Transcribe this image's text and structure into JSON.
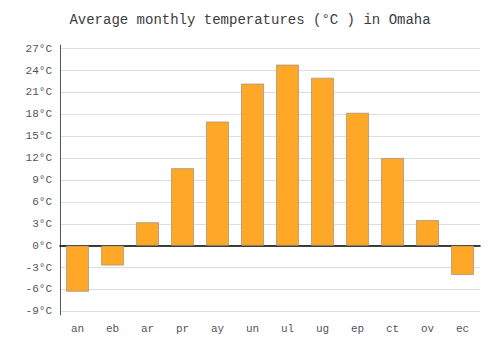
{
  "chart_data": {
    "type": "bar",
    "title": "Average monthly temperatures (°C ) in Omaha",
    "categories": [
      "an",
      "eb",
      "ar",
      "pr",
      "ay",
      "un",
      "ul",
      "ug",
      "ep",
      "ct",
      "ov",
      "ec"
    ],
    "values": [
      -6.3,
      -2.7,
      3.2,
      10.6,
      17.0,
      22.2,
      24.8,
      23.0,
      18.2,
      12.0,
      3.5,
      -4.0
    ],
    "color": "#FFA726",
    "ylim": [
      -9.5,
      27.5
    ],
    "yticks": [
      {
        "value": -9,
        "label": "-9°C"
      },
      {
        "value": -6,
        "label": "-6°C"
      },
      {
        "value": -3,
        "label": "-3°C"
      },
      {
        "value": 0,
        "label": "0°C"
      },
      {
        "value": 3,
        "label": "3°C"
      },
      {
        "value": 6,
        "label": "6°C"
      },
      {
        "value": 9,
        "label": "9°C"
      },
      {
        "value": 12,
        "label": "12°C"
      },
      {
        "value": 15,
        "label": "15°C"
      },
      {
        "value": 18,
        "label": "18°C"
      },
      {
        "value": 21,
        "label": "21°C"
      },
      {
        "value": 24,
        "label": "24°C"
      },
      {
        "value": 27,
        "label": "27°C"
      }
    ],
    "grid": true
  }
}
